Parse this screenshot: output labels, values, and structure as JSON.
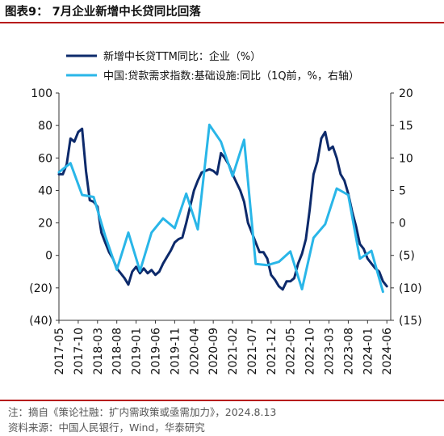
{
  "header": {
    "title": "图表9：  7月企业新增中长贷同比回落"
  },
  "footer": {
    "note": "注：摘自《策论社融：扩内需政策或亟需加力》，2024.8.13",
    "source": "资料来源：中国人民银行，Wind，华泰研究"
  },
  "chart_data": {
    "type": "line",
    "title": "",
    "xlabel": "",
    "ylabel": "",
    "y_left": {
      "lim": [
        -40,
        100
      ],
      "ticks": [
        100,
        80,
        60,
        40,
        20,
        0,
        -20,
        -40
      ],
      "tick_labels": [
        "100",
        "80",
        "60",
        "40",
        "20",
        "0",
        "(20)",
        "(40)"
      ]
    },
    "y_right": {
      "lim": [
        -15,
        20
      ],
      "ticks": [
        20,
        15,
        10,
        5,
        0,
        -5,
        -10,
        -15
      ],
      "tick_labels": [
        "20",
        "15",
        "10",
        "5",
        "0",
        "(5)",
        "(10)",
        "(15)"
      ]
    },
    "x_tick_labels": [
      "2017-05",
      "2017-10",
      "2018-03",
      "2018-08",
      "2019-01",
      "2019-06",
      "2019-11",
      "2020-04",
      "2020-09",
      "2021-02",
      "2021-07",
      "2021-12",
      "2022-05",
      "2022-10",
      "2023-03",
      "2023-08",
      "2024-01",
      "2024-06"
    ],
    "x_start": "2017-05",
    "x_end": "2024-07",
    "grid": false,
    "legend_position": "top-left",
    "series": [
      {
        "name": "新增中长贷TTM同比：企业（%）",
        "axis": "left",
        "color": "#0d2a6b",
        "points": [
          [
            "2017-05",
            50
          ],
          [
            "2017-06",
            50
          ],
          [
            "2017-07",
            56
          ],
          [
            "2017-08",
            72
          ],
          [
            "2017-09",
            70
          ],
          [
            "2017-10",
            76
          ],
          [
            "2017-11",
            78
          ],
          [
            "2017-12",
            52
          ],
          [
            "2018-01",
            34
          ],
          [
            "2018-02",
            33
          ],
          [
            "2018-03",
            30
          ],
          [
            "2018-04",
            14
          ],
          [
            "2018-05",
            8
          ],
          [
            "2018-06",
            2
          ],
          [
            "2018-07",
            -2
          ],
          [
            "2018-08",
            -8
          ],
          [
            "2018-09",
            -11
          ],
          [
            "2018-10",
            -14
          ],
          [
            "2018-11",
            -18
          ],
          [
            "2018-12",
            -10
          ],
          [
            "2019-01",
            -7
          ],
          [
            "2019-02",
            -11
          ],
          [
            "2019-03",
            -8
          ],
          [
            "2019-04",
            -11
          ],
          [
            "2019-05",
            -9
          ],
          [
            "2019-06",
            -12
          ],
          [
            "2019-07",
            -10
          ],
          [
            "2019-08",
            -5
          ],
          [
            "2019-09",
            -1
          ],
          [
            "2019-10",
            3
          ],
          [
            "2019-11",
            8
          ],
          [
            "2019-12",
            10
          ],
          [
            "2020-01",
            11
          ],
          [
            "2020-02",
            20
          ],
          [
            "2020-03",
            30
          ],
          [
            "2020-04",
            40
          ],
          [
            "2020-05",
            46
          ],
          [
            "2020-06",
            51
          ],
          [
            "2020-07",
            52
          ],
          [
            "2020-08",
            53
          ],
          [
            "2020-09",
            52
          ],
          [
            "2020-10",
            50
          ],
          [
            "2020-11",
            63
          ],
          [
            "2020-12",
            60
          ],
          [
            "2021-01",
            56
          ],
          [
            "2021-02",
            50
          ],
          [
            "2021-03",
            45
          ],
          [
            "2021-04",
            40
          ],
          [
            "2021-05",
            33
          ],
          [
            "2021-06",
            20
          ],
          [
            "2021-07",
            14
          ],
          [
            "2021-08",
            8
          ],
          [
            "2021-09",
            2
          ],
          [
            "2021-10",
            2
          ],
          [
            "2021-11",
            -2
          ],
          [
            "2021-12",
            -12
          ],
          [
            "2022-01",
            -15
          ],
          [
            "2022-02",
            -19
          ],
          [
            "2022-03",
            -21
          ],
          [
            "2022-04",
            -16
          ],
          [
            "2022-05",
            -16
          ],
          [
            "2022-06",
            -14
          ],
          [
            "2022-07",
            -5
          ],
          [
            "2022-08",
            1
          ],
          [
            "2022-09",
            10
          ],
          [
            "2022-10",
            28
          ],
          [
            "2022-11",
            50
          ],
          [
            "2022-12",
            58
          ],
          [
            "2023-01",
            72
          ],
          [
            "2023-02",
            76
          ],
          [
            "2023-03",
            65
          ],
          [
            "2023-04",
            67
          ],
          [
            "2023-05",
            60
          ],
          [
            "2023-06",
            50
          ],
          [
            "2023-07",
            46
          ],
          [
            "2023-08",
            38
          ],
          [
            "2023-09",
            27
          ],
          [
            "2023-10",
            18
          ],
          [
            "2023-11",
            7
          ],
          [
            "2023-12",
            4
          ],
          [
            "2024-01",
            -2
          ],
          [
            "2024-02",
            -5
          ],
          [
            "2024-03",
            -8
          ],
          [
            "2024-04",
            -10
          ],
          [
            "2024-05",
            -16
          ],
          [
            "2024-06",
            -19
          ]
        ]
      },
      {
        "name": "中国:贷款需求指数:基础设施:同比（1Q前，%，右轴）",
        "axis": "right",
        "color": "#29b6e8",
        "points": [
          [
            "2017-05",
            7.8
          ],
          [
            "2017-08",
            9.2
          ],
          [
            "2017-11",
            4.3
          ],
          [
            "2018-02",
            4.0
          ],
          [
            "2018-05",
            -2.0
          ],
          [
            "2018-08",
            -7.2
          ],
          [
            "2018-11",
            -1.5
          ],
          [
            "2019-02",
            -7.4
          ],
          [
            "2019-05",
            -1.5
          ],
          [
            "2019-08",
            0.7
          ],
          [
            "2019-11",
            -0.8
          ],
          [
            "2020-02",
            4.5
          ],
          [
            "2020-05",
            -1.0
          ],
          [
            "2020-08",
            15.1
          ],
          [
            "2020-11",
            12.5
          ],
          [
            "2021-02",
            7.2
          ],
          [
            "2021-05",
            12.8
          ],
          [
            "2021-08",
            -6.3
          ],
          [
            "2021-11",
            -6.5
          ],
          [
            "2022-02",
            -6.0
          ],
          [
            "2022-05",
            -4.4
          ],
          [
            "2022-08",
            -10.2
          ],
          [
            "2022-11",
            -2.3
          ],
          [
            "2023-02",
            -0.2
          ],
          [
            "2023-05",
            5.3
          ],
          [
            "2023-08",
            4.3
          ],
          [
            "2023-11",
            -5.5
          ],
          [
            "2024-02",
            -4.3
          ],
          [
            "2024-05",
            -10.6
          ]
        ]
      }
    ]
  }
}
